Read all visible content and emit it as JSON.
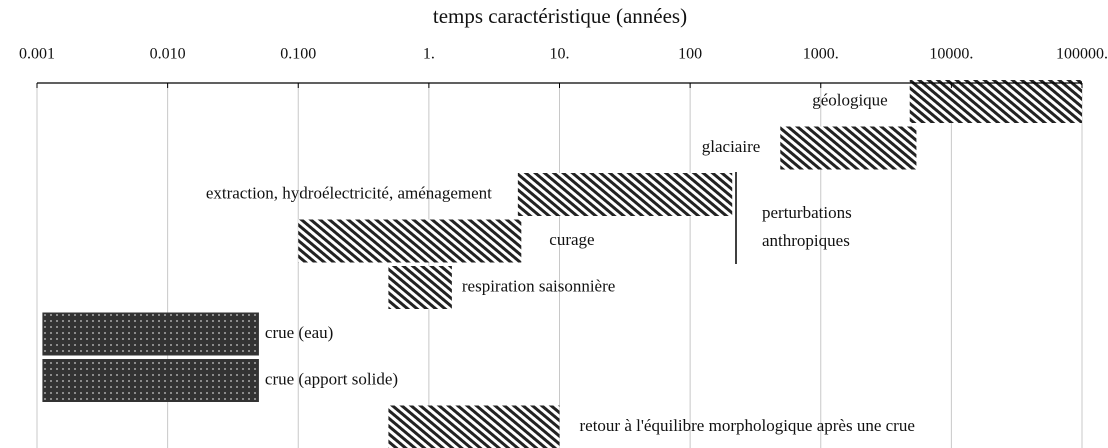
{
  "chart_data": {
    "type": "range-bar",
    "orientation": "horizontal",
    "title": "temps caractéristique (années)",
    "xscale": "log",
    "xlim": [
      0.001,
      100000
    ],
    "xticks": [
      0.001,
      {
        "value": 0.01,
        "label": "0.010"
      },
      {
        "value": 0.1,
        "label": "0.100"
      },
      {
        "value": 1,
        "label": "1."
      },
      {
        "value": 10,
        "label": "10."
      },
      100,
      {
        "value": 1000,
        "label": "1000."
      },
      {
        "value": 10000,
        "label": "10000."
      },
      {
        "value": 100000,
        "label": "100000."
      }
    ],
    "grid": true,
    "bars": [
      {
        "label": "géologique",
        "range": [
          4800,
          100000
        ],
        "pattern": "hatch"
      },
      {
        "label": "glaciaire",
        "range": [
          490,
          5400
        ],
        "pattern": "hatch"
      },
      {
        "label": "extraction, hydroélectricité, aménagement",
        "range": [
          4.8,
          210
        ],
        "pattern": "hatch"
      },
      {
        "label": "curage",
        "range": [
          0.1,
          5.1
        ],
        "pattern": "hatch"
      },
      {
        "label": "respiration saisonnière",
        "range": [
          0.49,
          1.5
        ],
        "pattern": "hatch"
      },
      {
        "label": "crue (eau)",
        "range": [
          0.0011,
          0.05
        ],
        "pattern": "dots"
      },
      {
        "label": "crue (apport solide)",
        "range": [
          0.0011,
          0.05
        ],
        "pattern": "dots"
      },
      {
        "label": "retour à l'équilibre morphologique après une crue",
        "range": [
          0.49,
          10
        ],
        "pattern": "hatch"
      }
    ],
    "annotation": [
      "perturbations",
      "anthropiques"
    ]
  }
}
